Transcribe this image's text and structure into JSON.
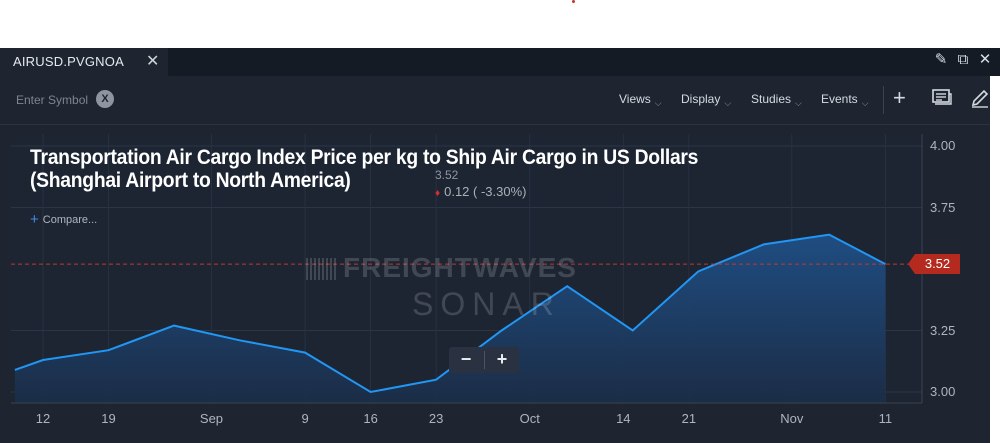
{
  "tab": {
    "label": "AIRUSD.PVGNOA",
    "close_glyph": "✕"
  },
  "window_icons": [
    "edit-icon",
    "popout-icon",
    "close-icon"
  ],
  "toolbar": {
    "symbol_placeholder": "Enter Symbol",
    "clear_label": "X",
    "menus": [
      "Views",
      "Display",
      "Studies",
      "Events"
    ],
    "icons": [
      "add-icon",
      "news-icon",
      "pencil-icon"
    ]
  },
  "chart": {
    "title_line1": "Transportation Air Cargo Index Price per kg to Ship Air Cargo in US Dollars",
    "title_line2": "(Shanghai Airport to North America)",
    "last_price": "3.52",
    "change_text": "0.12 ( -3.30%)",
    "compare_label": "Compare...",
    "watermark_line1": "FREIGHTWAVES",
    "watermark_line2": "SONAR",
    "zoom_out": "−",
    "zoom_in": "+",
    "current_label": "3.52",
    "colors": {
      "line": "#2196f3",
      "current": "#b42a1f",
      "background": "#1e2531"
    }
  },
  "chart_data": {
    "type": "area",
    "ylim": [
      2.99,
      4.02
    ],
    "y_ticks": [
      "4.00",
      "3.75",
      "3.25",
      "3.00"
    ],
    "x_ticks": [
      "12",
      "19",
      "Sep",
      "9",
      "16",
      "23",
      "Oct",
      "14",
      "21",
      "Nov",
      "11"
    ],
    "x_tick_positions": [
      0,
      7,
      18,
      28,
      35,
      42,
      52,
      62,
      69,
      80,
      90
    ],
    "series": [
      {
        "x": [
          -3,
          0,
          7,
          14,
          21,
          28,
          35,
          42,
          49,
          56,
          63,
          70,
          77,
          84,
          90
        ],
        "values": [
          3.09,
          3.13,
          3.17,
          3.27,
          3.21,
          3.16,
          3.0,
          3.05,
          3.25,
          3.43,
          3.25,
          3.49,
          3.6,
          3.64,
          3.52
        ]
      }
    ],
    "reference_line": 3.52,
    "grid": true
  }
}
